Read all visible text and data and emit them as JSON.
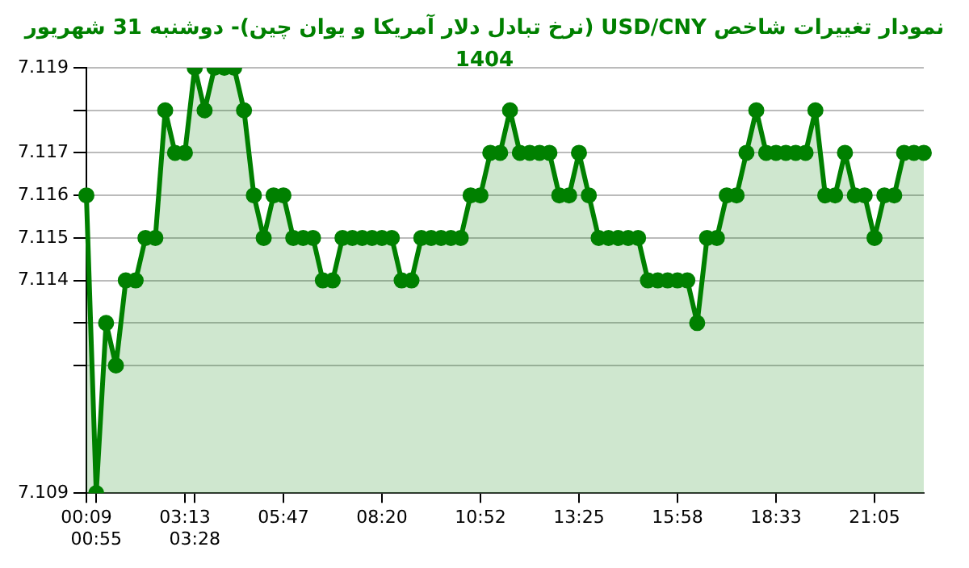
{
  "chart_data": {
    "type": "area",
    "title": "نمودار تغییرات شاخص USD/CNY (نرخ تبادل دلار آمریکا و یوان چین)- دوشنبه  31 شهریور 1404",
    "categories": [
      "00:09",
      "00:55",
      null,
      null,
      null,
      null,
      null,
      null,
      null,
      null,
      "03:13",
      "03:28",
      null,
      null,
      null,
      null,
      null,
      null,
      null,
      null,
      "05:47",
      null,
      null,
      null,
      null,
      null,
      null,
      null,
      null,
      null,
      "08:20",
      null,
      null,
      null,
      null,
      null,
      null,
      null,
      null,
      null,
      "10:52",
      null,
      null,
      null,
      null,
      null,
      null,
      null,
      null,
      null,
      "13:25",
      null,
      null,
      null,
      null,
      null,
      null,
      null,
      null,
      null,
      "15:58",
      null,
      null,
      null,
      null,
      null,
      null,
      null,
      null,
      null,
      "18:33",
      null,
      null,
      null,
      null,
      null,
      null,
      null,
      null,
      null,
      "21:05",
      null,
      null,
      null,
      null,
      null
    ],
    "series": [
      {
        "color": "#008000",
        "values": [
          7.116,
          7.109,
          7.113,
          7.112,
          7.114,
          7.114,
          7.115,
          7.115,
          7.118,
          7.117,
          7.117,
          7.119,
          7.118,
          7.119,
          7.119,
          7.119,
          7.118,
          7.116,
          7.115,
          7.116,
          7.116,
          7.115,
          7.115,
          7.115,
          7.114,
          7.114,
          7.115,
          7.115,
          7.115,
          7.115,
          7.115,
          7.115,
          7.114,
          7.114,
          7.115,
          7.115,
          7.115,
          7.115,
          7.115,
          7.116,
          7.116,
          7.117,
          7.117,
          7.118,
          7.117,
          7.117,
          7.117,
          7.117,
          7.116,
          7.116,
          7.117,
          7.116,
          7.115,
          7.115,
          7.115,
          7.115,
          7.115,
          7.114,
          7.114,
          7.114,
          7.114,
          7.114,
          7.113,
          7.115,
          7.115,
          7.116,
          7.116,
          7.117,
          7.118,
          7.117,
          7.117,
          7.117,
          7.117,
          7.117,
          7.118,
          7.116,
          7.116,
          7.117,
          7.116,
          7.116,
          7.115,
          7.116,
          7.116,
          7.117,
          7.117,
          7.117
        ]
      }
    ],
    "ylim": [
      7.109,
      7.119
    ],
    "yticks": [
      7.109,
      {
        "value": 7.112,
        "label": null
      },
      {
        "value": 7.113,
        "label": null
      },
      7.114,
      7.115,
      7.116,
      7.117,
      {
        "value": 7.118,
        "label": null
      },
      7.119
    ],
    "grid": "y",
    "marker": "circle",
    "legend": false
  }
}
